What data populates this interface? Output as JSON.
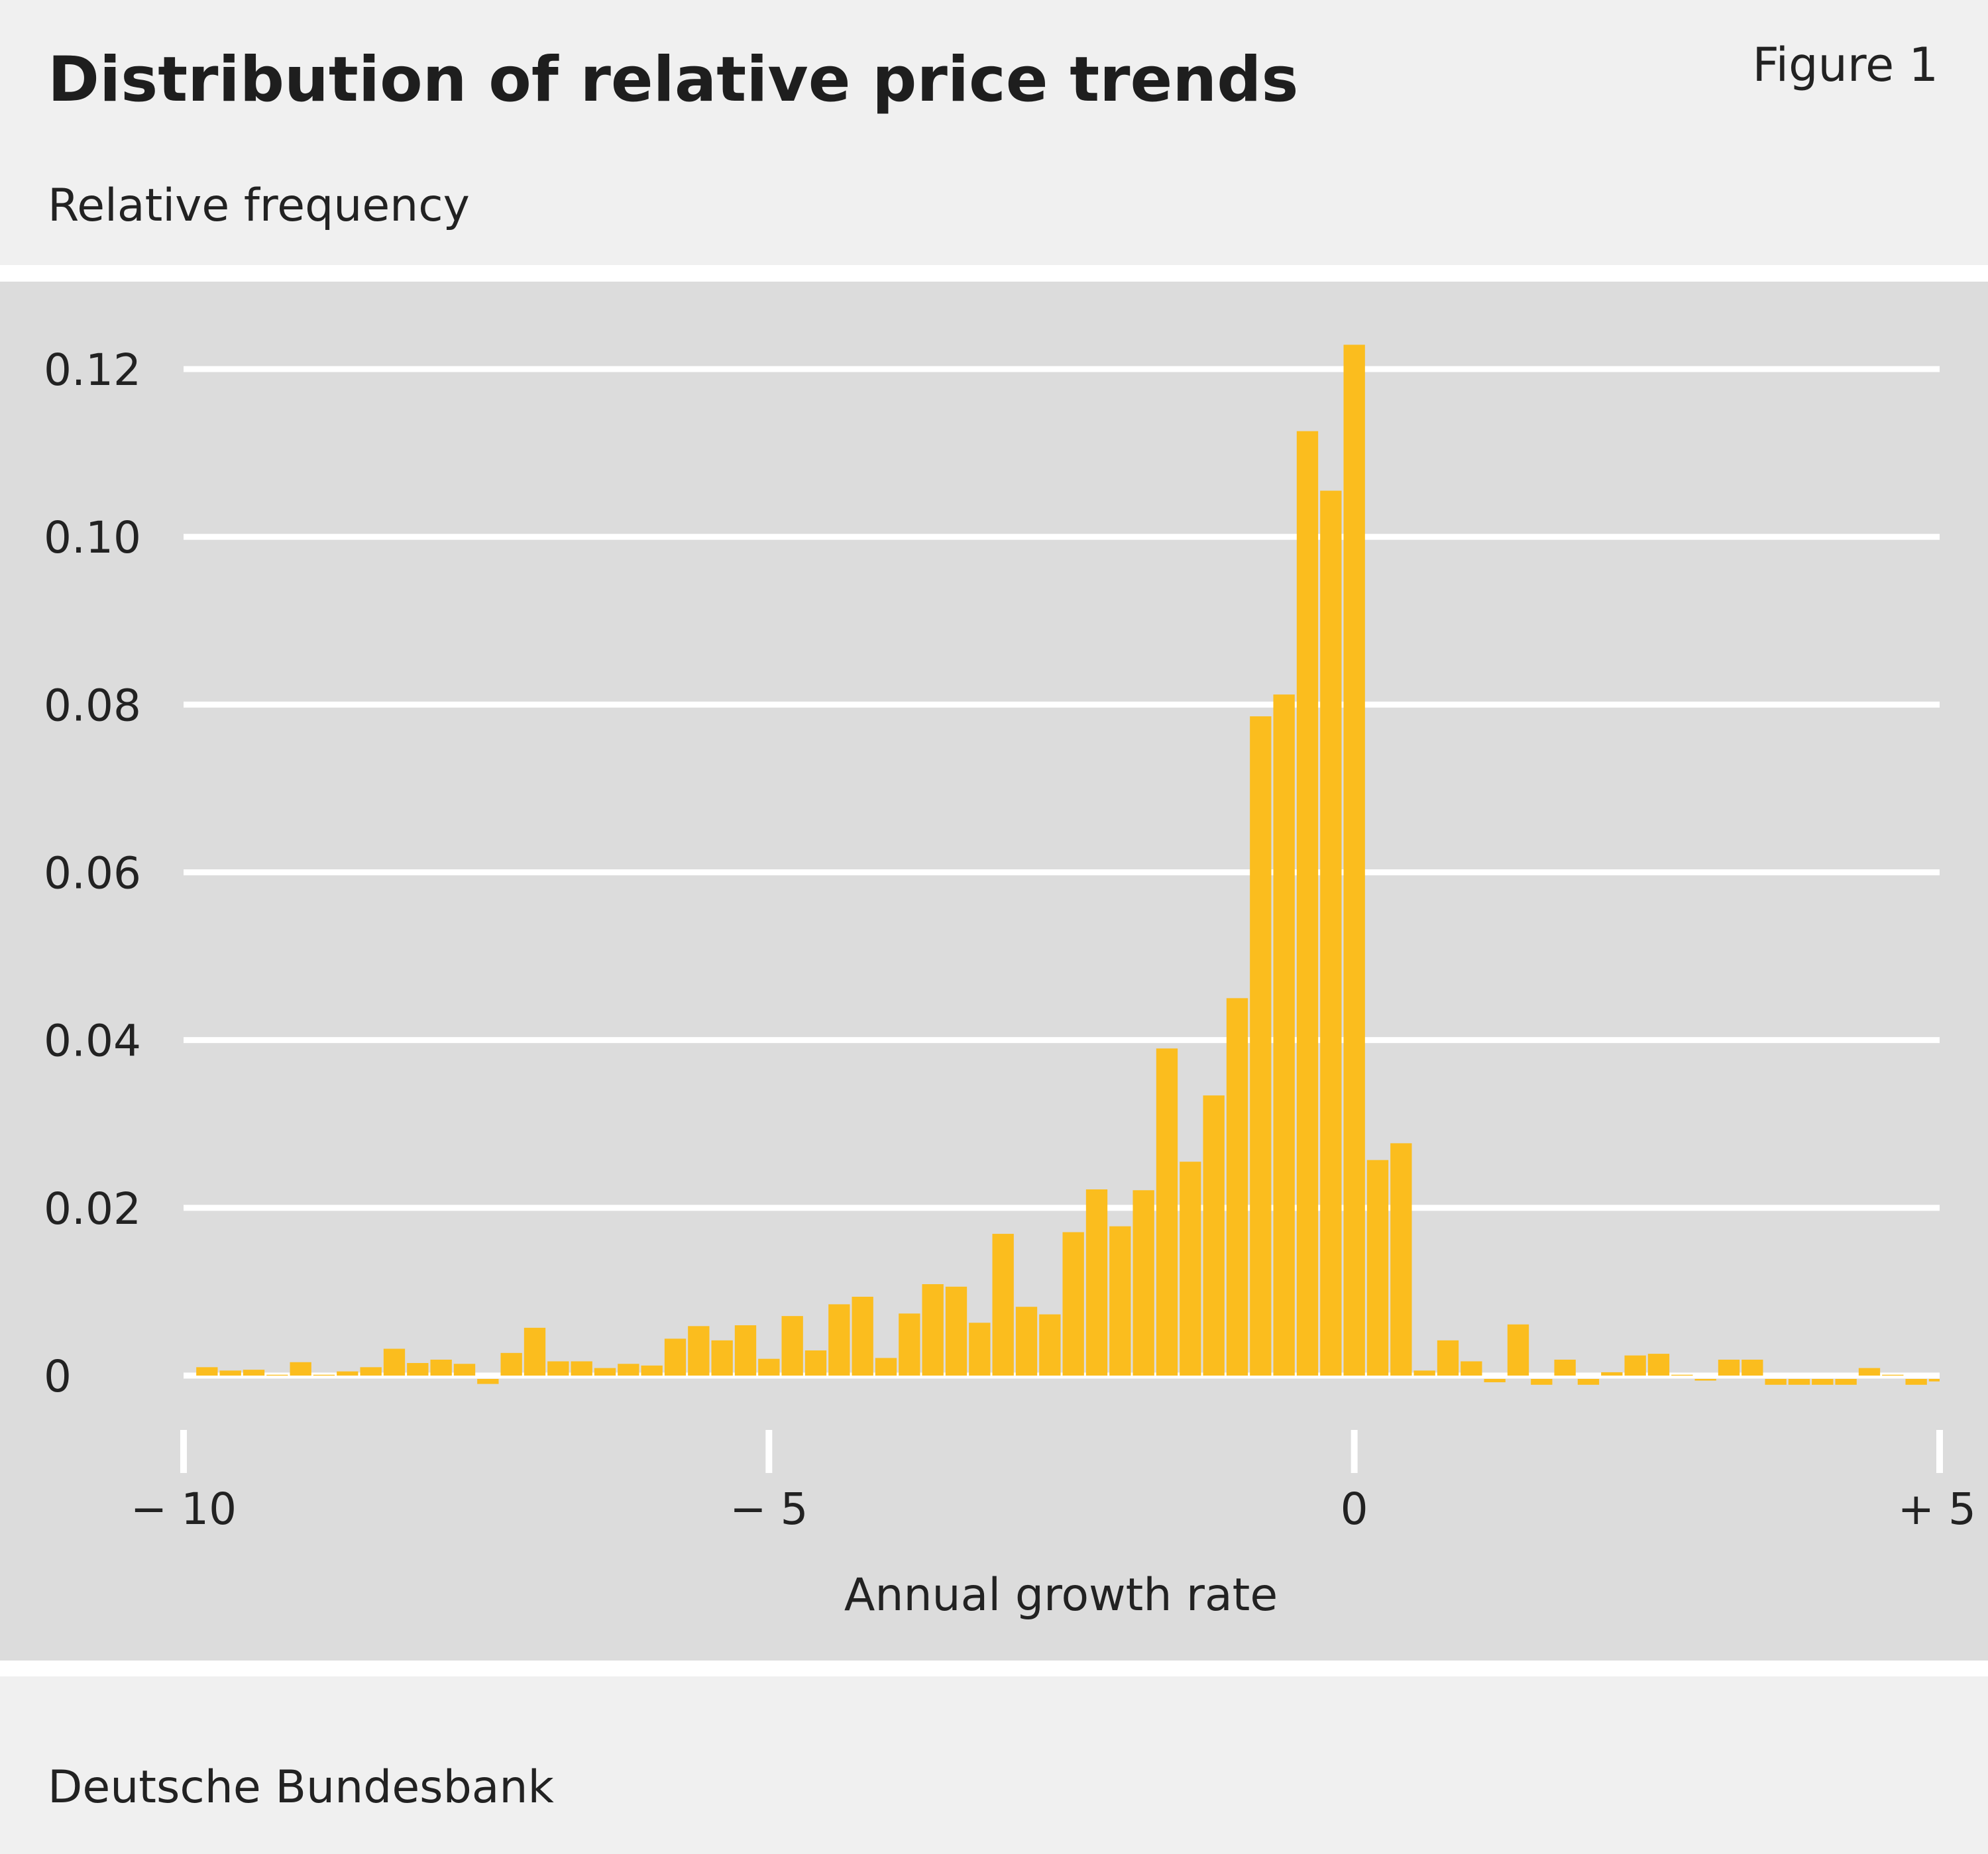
{
  "header": {
    "title": "Distribution of relative price trends",
    "figure_label": "Figure 1",
    "y_axis_title": "Relative frequency"
  },
  "footer": {
    "source": "Deutsche Bundesbank"
  },
  "colors": {
    "bar": "#fbbd1e",
    "panel": "#dcdcdc",
    "background": "#f0f0f0",
    "grid": "#ffffff"
  },
  "chart_data": {
    "type": "bar",
    "title": "Distribution of relative price trends",
    "xlabel": "Annual growth rate",
    "ylabel": "Relative frequency",
    "xlim": [
      -10,
      5
    ],
    "ylim": [
      0,
      0.12
    ],
    "grid": true,
    "bin_width": 0.2,
    "y_ticks": [
      {
        "value": 0,
        "label": "0"
      },
      {
        "value": 0.02,
        "label": "0.02"
      },
      {
        "value": 0.04,
        "label": "0.04"
      },
      {
        "value": 0.06,
        "label": "0.06"
      },
      {
        "value": 0.08,
        "label": "0.08"
      },
      {
        "value": 0.1,
        "label": "0.10"
      },
      {
        "value": 0.12,
        "label": "0.12"
      }
    ],
    "x_ticks": [
      {
        "value": -10,
        "label": "− 10"
      },
      {
        "value": -5,
        "label": "− 5"
      },
      {
        "value": 0,
        "label": "0"
      },
      {
        "value": 5,
        "label": "+ 5"
      }
    ],
    "x": [
      -9.8,
      -9.6,
      -9.4,
      -9.2,
      -9.0,
      -8.8,
      -8.6,
      -8.4,
      -8.2,
      -8.0,
      -7.8,
      -7.6,
      -7.4,
      -7.2,
      -7.0,
      -6.8,
      -6.6,
      -6.4,
      -6.2,
      -6.0,
      -5.8,
      -5.6,
      -5.4,
      -5.2,
      -5.0,
      -4.8,
      -4.6,
      -4.4,
      -4.2,
      -4.0,
      -3.8,
      -3.6,
      -3.4,
      -3.2,
      -3.0,
      -2.8,
      -2.6,
      -2.4,
      -2.2,
      -2.0,
      -1.8,
      -1.6,
      -1.4,
      -1.2,
      -1.0,
      -0.8,
      -0.6,
      -0.4,
      -0.2,
      0.0,
      0.2,
      0.4,
      0.6,
      0.8,
      1.0,
      1.2,
      1.4,
      1.6,
      1.8,
      2.0,
      2.2,
      2.4,
      2.6,
      2.8,
      3.0,
      3.2,
      3.4,
      3.6,
      3.8,
      4.0,
      4.2,
      4.4,
      4.6,
      4.8,
      5.0
    ],
    "values": [
      0.001,
      0.0006,
      0.0007,
      0.0001,
      0.0016,
      0.0001,
      0.0005,
      0.001,
      0.0032,
      0.0015,
      0.0019,
      0.0014,
      -0.0006,
      0.0027,
      0.0057,
      0.0017,
      0.0017,
      0.0009,
      0.0014,
      0.0012,
      0.0044,
      0.0059,
      0.0042,
      0.006,
      0.002,
      0.0071,
      0.003,
      0.0085,
      0.0094,
      0.0021,
      0.0074,
      0.0109,
      0.0106,
      0.0063,
      0.0169,
      0.0082,
      0.0073,
      0.0171,
      0.0222,
      0.0178,
      0.0221,
      0.039,
      0.0255,
      0.0334,
      0.045,
      0.0786,
      0.0812,
      0.1126,
      0.1055,
      0.1229,
      0.0257,
      0.0277,
      0.0006,
      0.0042,
      0.0017,
      -0.0004,
      0.0061,
      -0.0007,
      0.0019,
      -0.0007,
      0.0004,
      0.0024,
      0.0026,
      0.0001,
      -0.0002,
      0.0019,
      0.0019,
      -0.0007,
      -0.0007,
      -0.0007,
      -0.0007,
      0.0009,
      0.0001,
      -0.0007,
      -0.0003
    ]
  }
}
